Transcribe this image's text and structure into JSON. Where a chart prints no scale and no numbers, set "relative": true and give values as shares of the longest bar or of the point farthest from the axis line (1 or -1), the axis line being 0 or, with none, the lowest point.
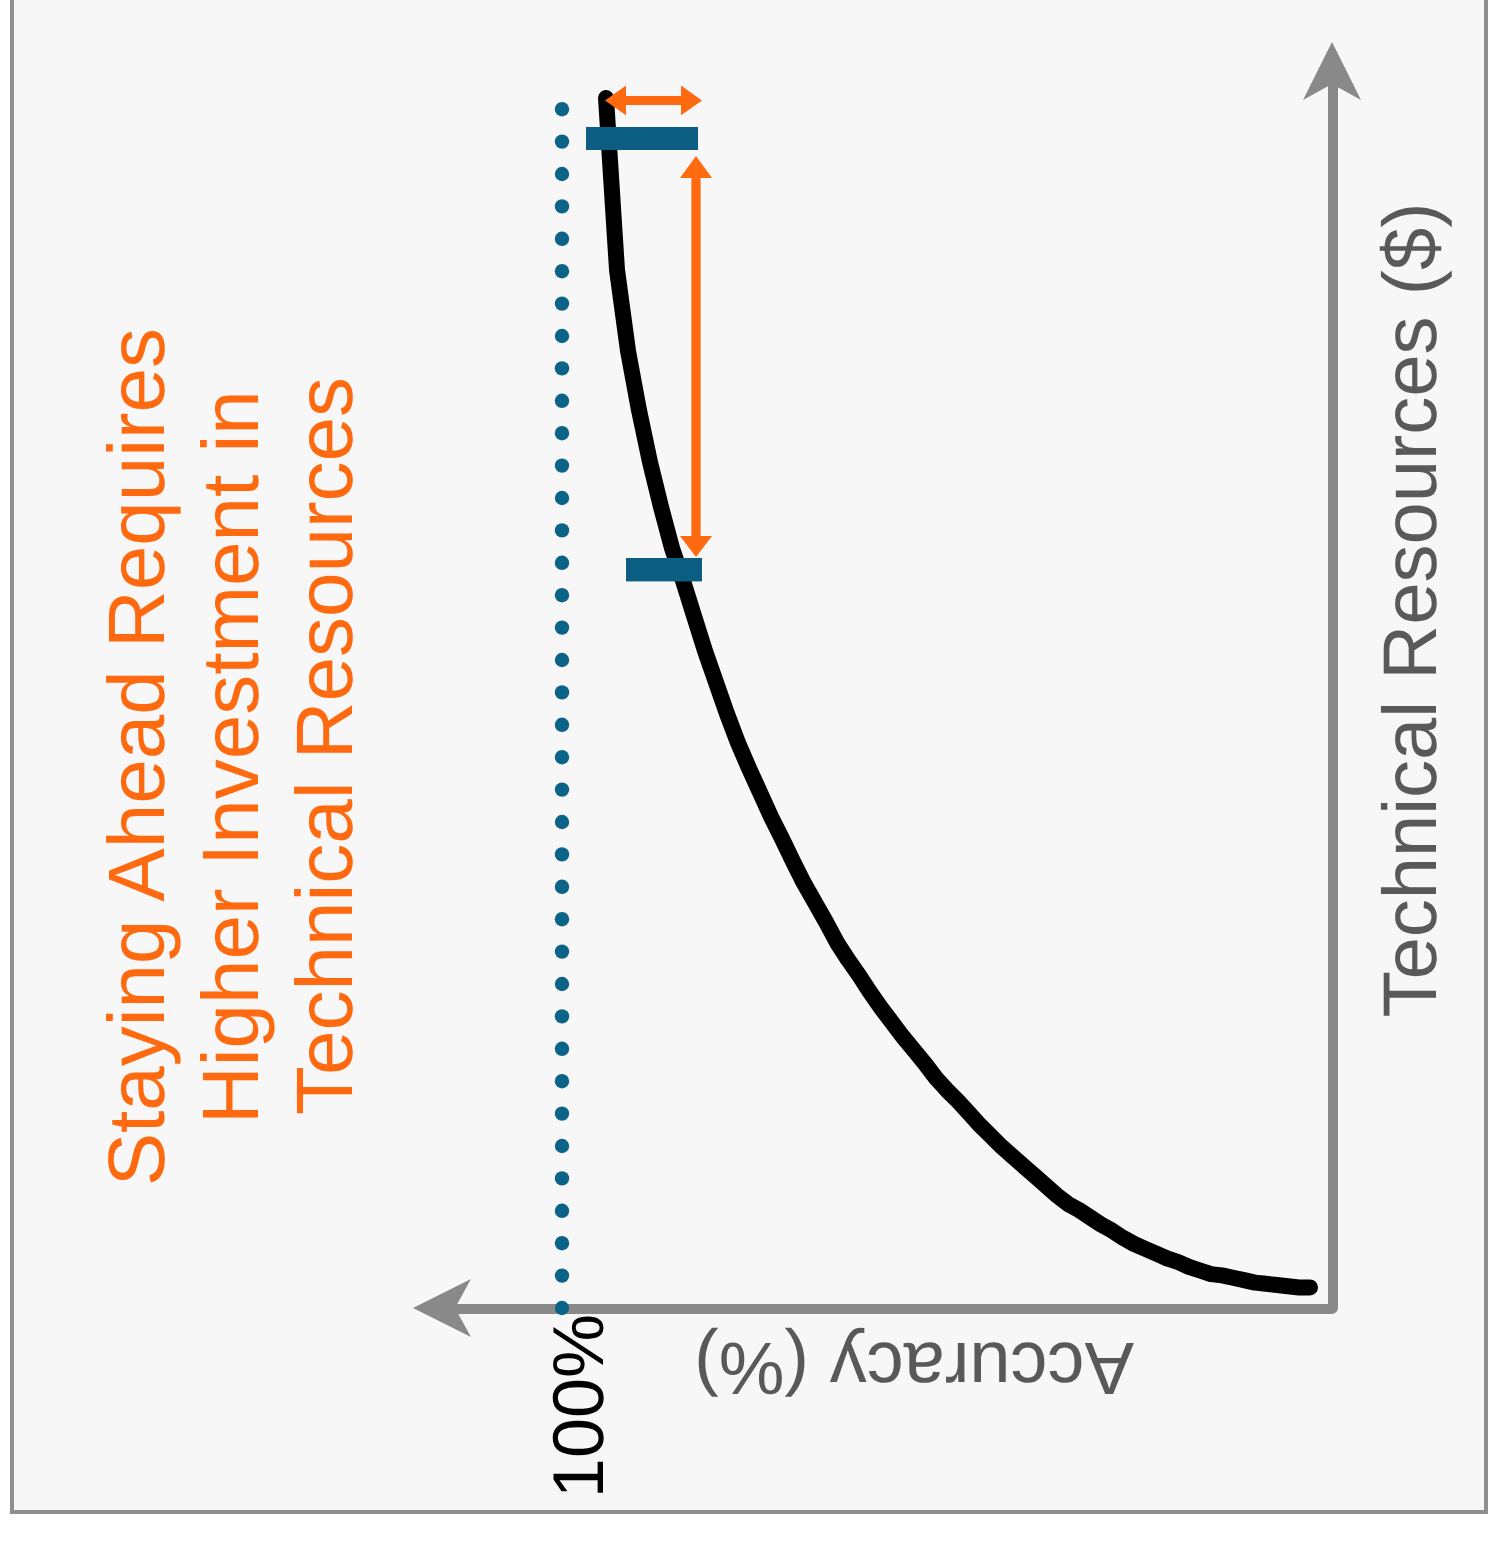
{
  "chart_data": {
    "type": "line",
    "title": "Staying Ahead Requires Higher Investment in Technical Resources",
    "xlabel": "Accuracy (%)",
    "ylabel": "Technical Resources ($)",
    "relative": true,
    "categories": [
      null,
      null,
      null,
      null,
      null,
      null,
      null,
      null,
      null,
      null,
      null,
      null,
      null,
      null,
      null,
      null,
      null,
      null,
      null,
      null,
      null,
      null,
      null,
      null,
      null,
      null,
      null,
      null,
      null,
      null,
      null,
      null,
      null,
      null,
      null,
      null,
      null,
      null,
      null,
      null,
      null,
      null,
      null,
      null,
      null,
      null,
      null,
      null,
      null,
      null,
      null,
      null,
      null,
      null,
      null,
      null,
      null,
      null,
      null,
      null,
      null,
      null,
      null,
      null,
      null,
      null,
      null,
      null,
      null,
      null,
      null,
      null,
      null,
      null,
      null,
      null,
      null,
      null,
      null,
      null,
      null,
      null
    ],
    "series": [
      {
        "color": "#000000",
        "values": [
          null,
          null,
          null,
          null,
          null,
          null,
          null,
          null,
          null,
          null,
          null,
          null,
          null,
          null,
          null,
          1,
          0.858,
          0.791,
          0.742,
          0.699,
          0.662,
          0.628,
          0.601,
          0.572,
          0.543,
          0.517,
          0.491,
          0.467,
          0.446,
          0.426,
          0.406,
          0.388,
          0.369,
          0.351,
          0.335,
          0.319,
          0.302,
          0.288,
          0.275,
          0.261,
          0.248,
          0.236,
          0.224,
          0.213,
          0.202,
          0.19,
          0.18,
          0.171,
          0.161,
          0.151,
          0.142,
          0.133,
          0.125,
          0.117,
          0.109,
          0.101,
          0.093,
          0.086,
          0.081,
          0.075,
          0.069,
          0.064,
          0.058,
          0.053,
          0.049,
          0.045,
          0.041,
          0.038,
          0.034,
          0.031,
          0.028,
          0.027,
          0.025,
          0.023,
          0.021,
          0.02,
          0.019,
          0.018,
          0.017,
          0.017,
          null,
          null
        ]
      }
    ],
    "annotations": [
      "100%"
    ]
  }
}
